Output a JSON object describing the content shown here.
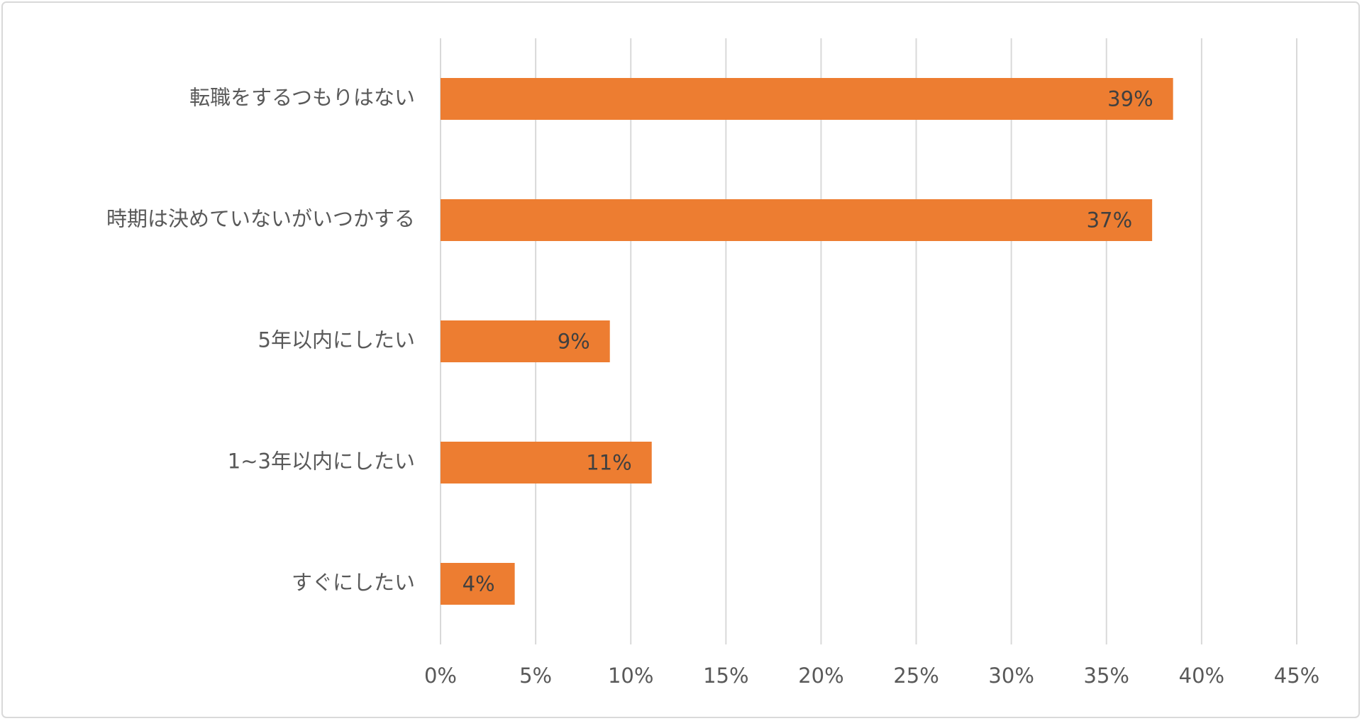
{
  "chart_data": {
    "type": "barh",
    "categories": [
      "転職をするつもりはない",
      "時期は決めていないがいつかする",
      "5年以内にしたい",
      "1~3年以内にしたい",
      "すぐにしたい"
    ],
    "values": [
      38.5,
      37.4,
      8.9,
      11.1,
      3.9
    ],
    "value_labels": [
      "39%",
      "37%",
      "9%",
      "11%",
      "4%"
    ],
    "color": "#ed7d31",
    "xlim": [
      0,
      45
    ],
    "xticks": [
      {
        "value": 0,
        "label": "0%"
      },
      {
        "value": 5,
        "label": "5%"
      },
      {
        "value": 10,
        "label": "10%"
      },
      {
        "value": 15,
        "label": "15%"
      },
      {
        "value": 20,
        "label": "20%"
      },
      {
        "value": 25,
        "label": "25%"
      },
      {
        "value": 30,
        "label": "30%"
      },
      {
        "value": 35,
        "label": "35%"
      },
      {
        "value": 40,
        "label": "40%"
      },
      {
        "value": 45,
        "label": "45%"
      }
    ],
    "grid": true
  }
}
